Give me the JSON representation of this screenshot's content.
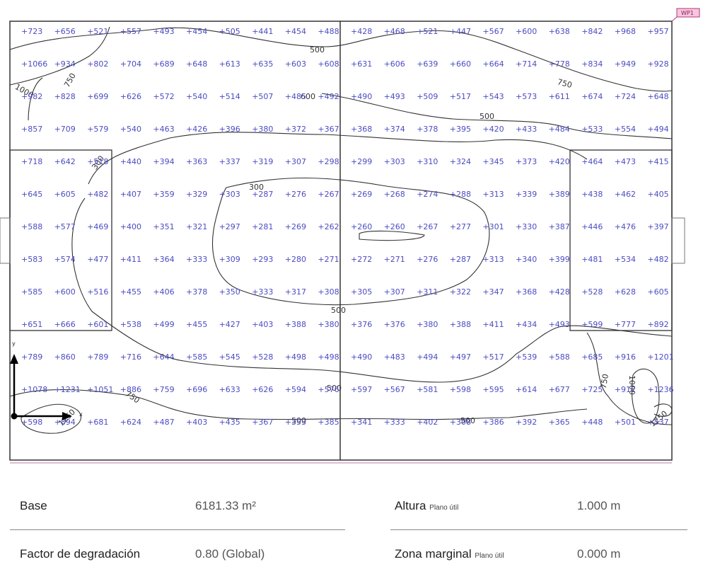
{
  "plan": {
    "tag": "WP1",
    "axis_x": "x",
    "axis_y": "y",
    "rows": [
      [
        "723",
        "656",
        "521",
        "557",
        "493",
        "454",
        "505",
        "441",
        "454",
        "488",
        "428",
        "468",
        "521",
        "447",
        "567",
        "600",
        "638",
        "842",
        "968",
        "957"
      ],
      [
        "1066",
        "934",
        "802",
        "704",
        "689",
        "648",
        "613",
        "635",
        "603",
        "608",
        "631",
        "606",
        "639",
        "660",
        "664",
        "714",
        "778",
        "834",
        "949",
        "928"
      ],
      [
        "982",
        "828",
        "699",
        "626",
        "572",
        "540",
        "514",
        "507",
        "485",
        "492",
        "490",
        "493",
        "509",
        "517",
        "543",
        "573",
        "611",
        "674",
        "724",
        "648"
      ],
      [
        "857",
        "709",
        "579",
        "540",
        "463",
        "426",
        "396",
        "380",
        "372",
        "367",
        "368",
        "374",
        "378",
        "395",
        "420",
        "433",
        "484",
        "533",
        "554",
        "494"
      ],
      [
        "718",
        "642",
        "518",
        "440",
        "394",
        "363",
        "337",
        "319",
        "307",
        "298",
        "299",
        "303",
        "310",
        "324",
        "345",
        "373",
        "420",
        "464",
        "473",
        "415"
      ],
      [
        "645",
        "605",
        "482",
        "407",
        "359",
        "329",
        "303",
        "287",
        "276",
        "267",
        "269",
        "268",
        "274",
        "288",
        "313",
        "339",
        "389",
        "438",
        "462",
        "405"
      ],
      [
        "588",
        "577",
        "469",
        "400",
        "351",
        "321",
        "297",
        "281",
        "269",
        "262",
        "260",
        "260",
        "267",
        "277",
        "301",
        "330",
        "387",
        "446",
        "476",
        "397"
      ],
      [
        "583",
        "574",
        "477",
        "411",
        "364",
        "333",
        "309",
        "293",
        "280",
        "271",
        "272",
        "271",
        "276",
        "287",
        "313",
        "340",
        "399",
        "481",
        "534",
        "482"
      ],
      [
        "585",
        "600",
        "516",
        "455",
        "406",
        "378",
        "350",
        "333",
        "317",
        "308",
        "305",
        "307",
        "311",
        "322",
        "347",
        "368",
        "428",
        "528",
        "628",
        "605"
      ],
      [
        "651",
        "666",
        "601",
        "538",
        "499",
        "455",
        "427",
        "403",
        "388",
        "380",
        "376",
        "376",
        "380",
        "388",
        "411",
        "434",
        "493",
        "599",
        "777",
        "892"
      ],
      [
        "789",
        "860",
        "789",
        "716",
        "644",
        "585",
        "545",
        "528",
        "498",
        "498",
        "490",
        "483",
        "494",
        "497",
        "517",
        "539",
        "588",
        "685",
        "916",
        "1201"
      ],
      [
        "1078",
        "1231",
        "1051",
        "886",
        "759",
        "696",
        "633",
        "626",
        "594",
        "576",
        "597",
        "567",
        "581",
        "598",
        "595",
        "614",
        "677",
        "725",
        "912",
        "1236"
      ],
      [
        "598",
        "894",
        "681",
        "624",
        "487",
        "403",
        "435",
        "367",
        "353",
        "385",
        "341",
        "333",
        "402",
        "308",
        "386",
        "392",
        "365",
        "448",
        "501",
        "537"
      ]
    ],
    "contour_labels": [
      "500",
      "750",
      "1000",
      "600",
      "500",
      "750",
      "300",
      "300",
      "500",
      "500",
      "500",
      "750",
      "1000",
      "1250",
      "750",
      "1250",
      "500"
    ]
  },
  "table": {
    "base_label": "Base",
    "base_value": "6181.33 m²",
    "altura_label": "Altura",
    "altura_sub": "Plano útil",
    "altura_value": "1.000 m",
    "factor_label": "Factor de degradación",
    "factor_value": "0.80 (Global)",
    "zona_label": "Zona marginal",
    "zona_sub": "Plano útil",
    "zona_value": "0.000 m"
  }
}
